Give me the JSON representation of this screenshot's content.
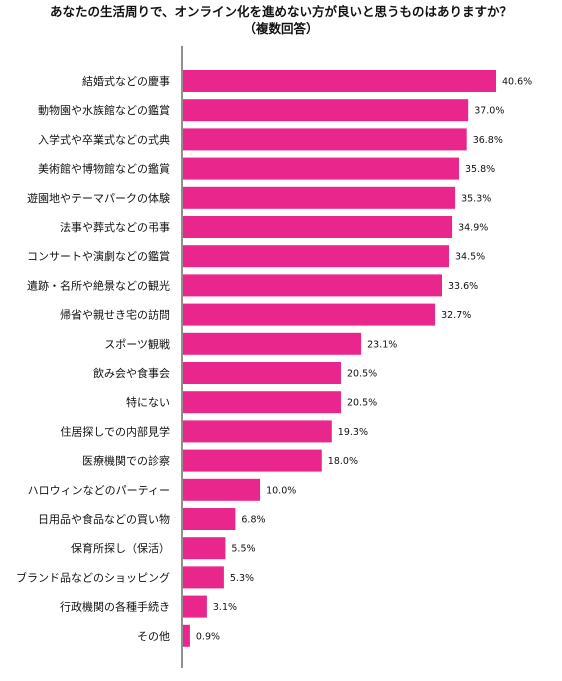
{
  "chart_data": {
    "type": "bar",
    "orientation": "horizontal",
    "title": "あなたの生活周りで、オンライン化を進めない方が良いと思うものはありますか？",
    "subtitle": "（複数回答）",
    "categories": [
      "結婚式などの慶事",
      "動物園や水族館などの鑑賞",
      "入学式や卒業式などの式典",
      "美術館や博物館などの鑑賞",
      "遊園地やテーマパークの体験",
      "法事や葬式などの弔事",
      "コンサートや演劇などの鑑賞",
      "遺跡・名所や絶景などの観光",
      "帰省や親せき宅の訪問",
      "スポーツ観戦",
      "飲み会や食事会",
      "特にない",
      "住居探しでの内部見学",
      "医療機関での診察",
      "ハロウィンなどのパーティー",
      "日用品や食品などの買い物",
      "保育所探し（保活）",
      "ブランド品などのショッピング",
      "行政機関の各種手続き",
      "その他"
    ],
    "values": [
      40.6,
      37.0,
      36.8,
      35.8,
      35.3,
      34.9,
      34.5,
      33.6,
      32.7,
      23.1,
      20.5,
      20.5,
      19.3,
      18.0,
      10.0,
      6.8,
      5.5,
      5.3,
      3.1,
      0.9
    ],
    "value_labels": [
      "40.6%",
      "37.0%",
      "36.8%",
      "35.8%",
      "35.3%",
      "34.9%",
      "34.5%",
      "33.6%",
      "32.7%",
      "23.1%",
      "20.5%",
      "20.5%",
      "19.3%",
      "18.0%",
      "10.0%",
      "6.8%",
      "5.5%",
      "5.3%",
      "3.1%",
      "0.9%"
    ],
    "xlim": [
      0,
      40.6
    ],
    "grid": false,
    "legend": "none",
    "bar_color": "#e8268b"
  }
}
